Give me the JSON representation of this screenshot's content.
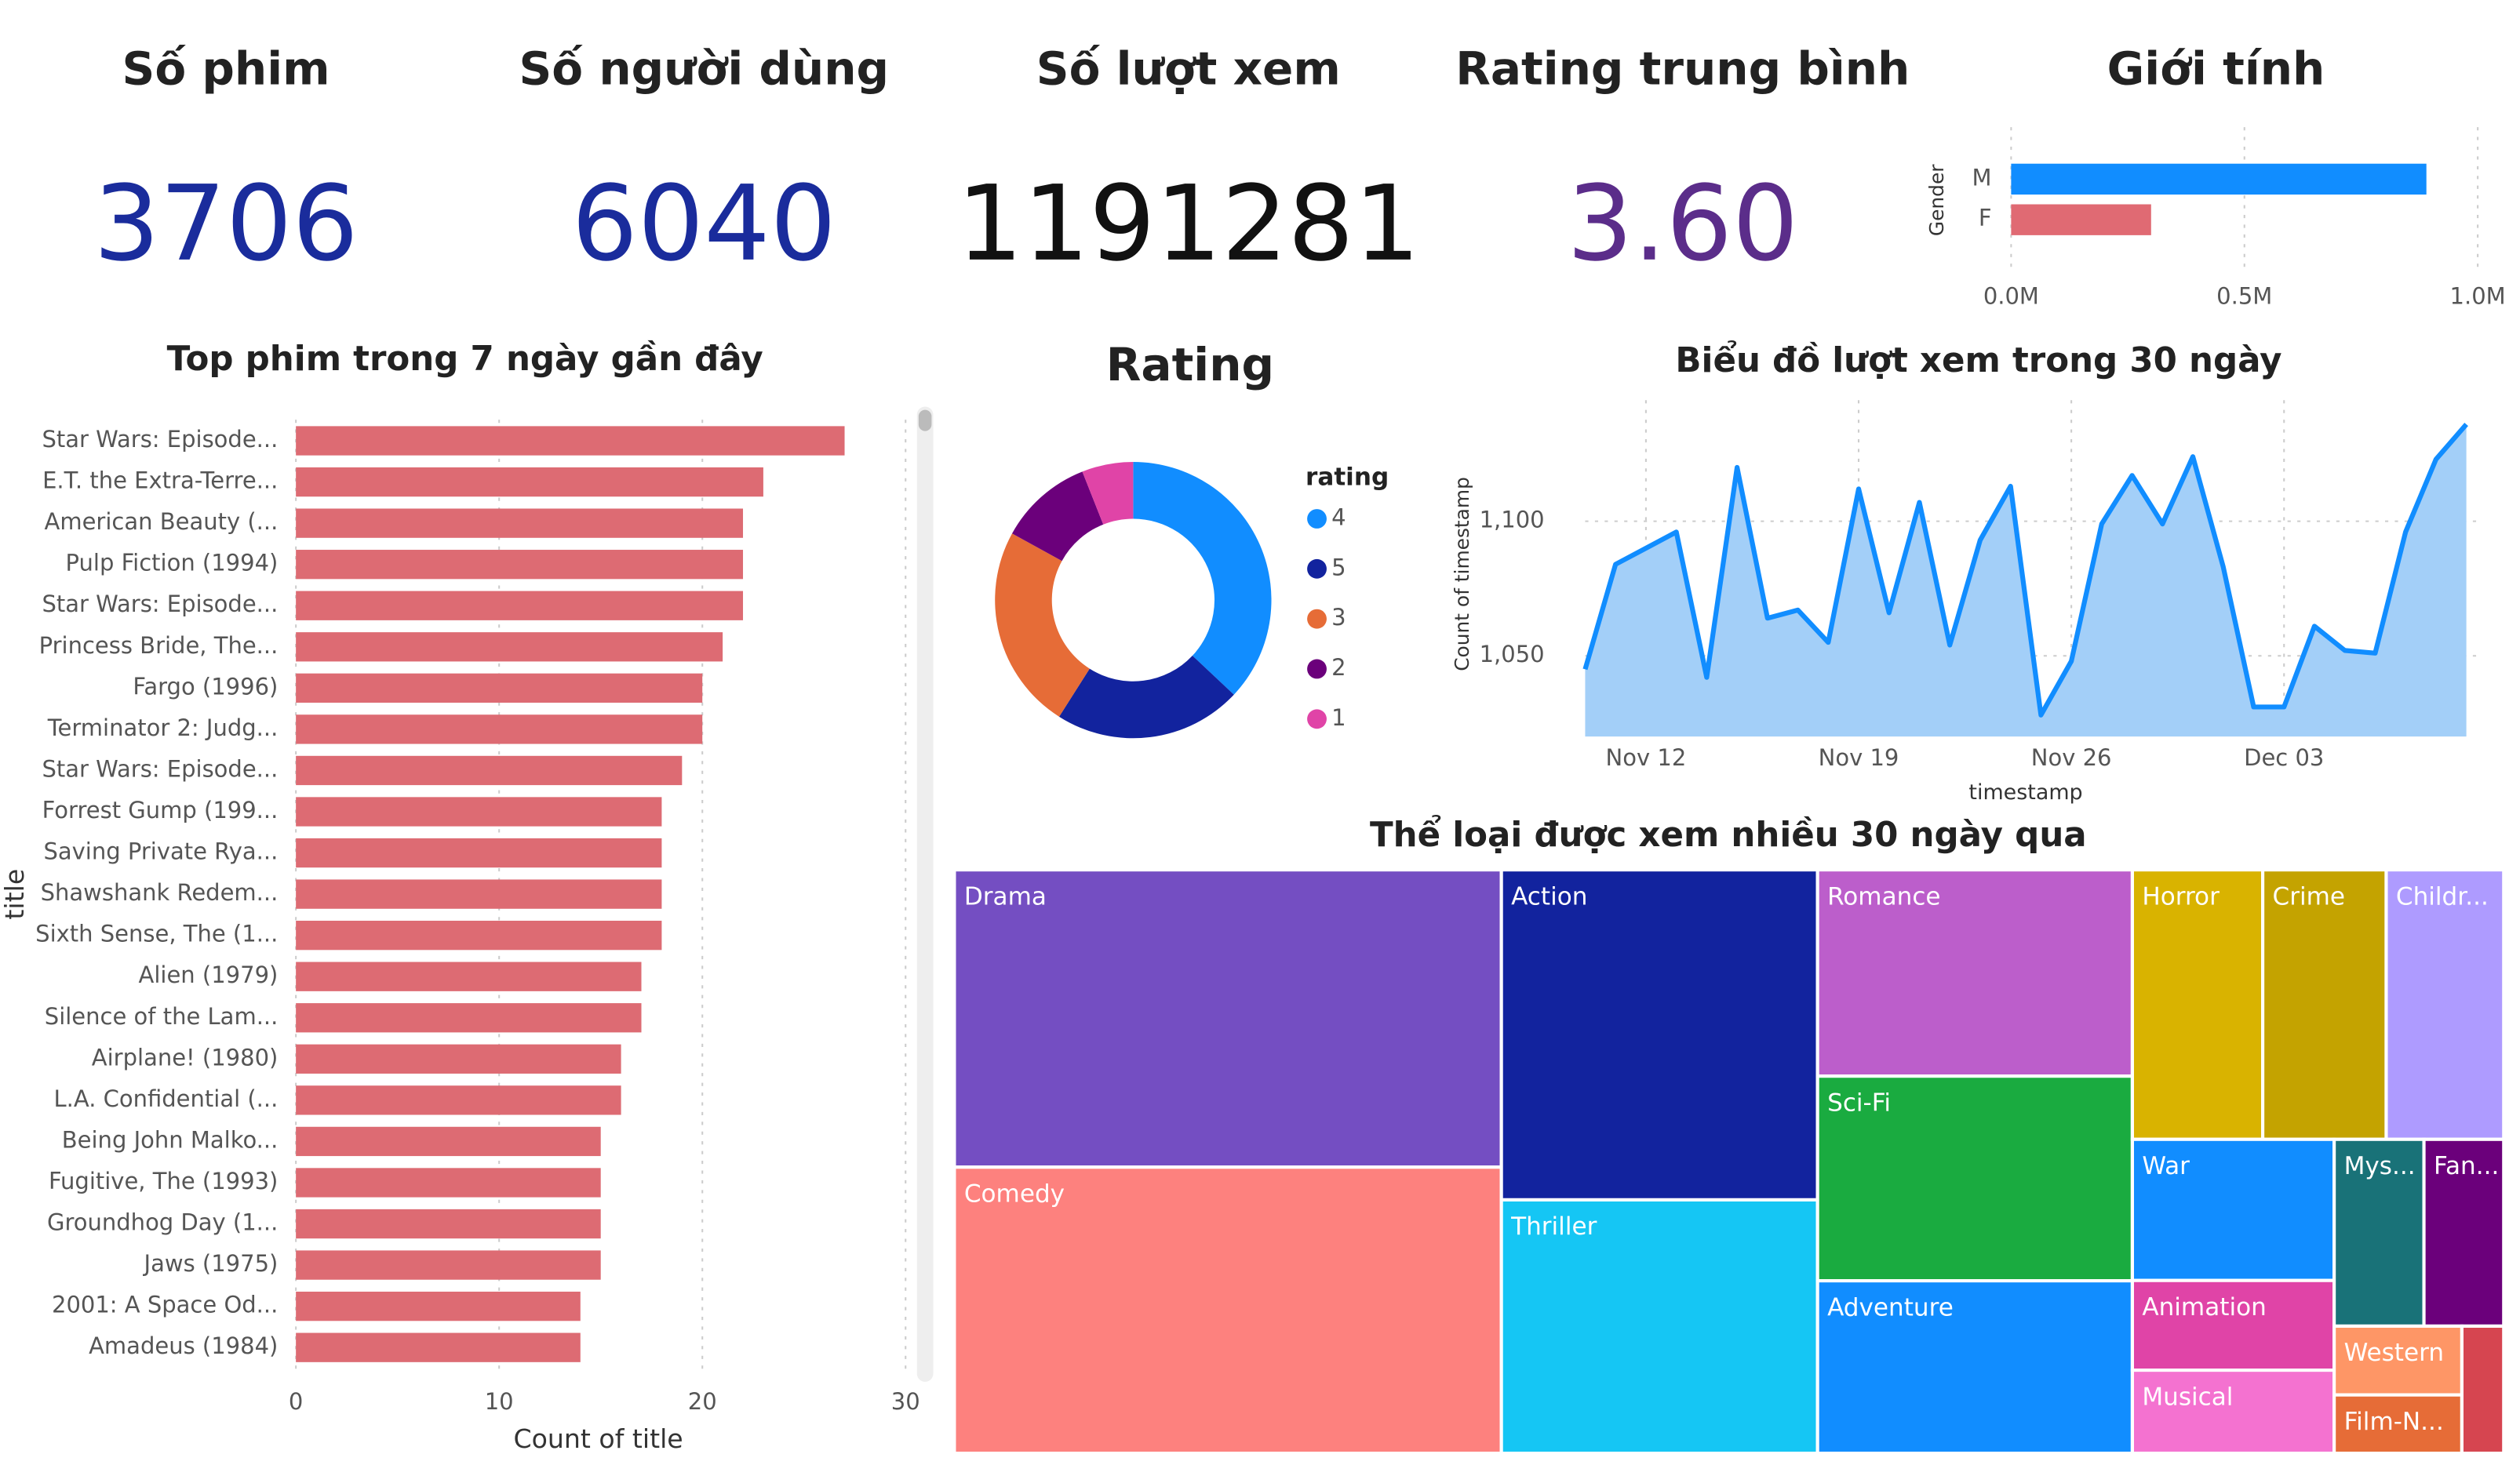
{
  "kpis": [
    {
      "label": "Số phim",
      "value": 3706
    },
    {
      "label": "Số người dùng",
      "value": 6040
    },
    {
      "label": "Số lượt xem",
      "value": 1191281
    },
    {
      "label": "Rating trung bình",
      "value": 3.6,
      "value_label": "3.60"
    }
  ],
  "chart_data": [
    {
      "type": "bar",
      "orientation": "horizontal",
      "title": "Giới tính",
      "y_label": "Gender",
      "categories": [
        "M",
        "F"
      ],
      "values": [
        890000,
        300000
      ],
      "colors": [
        "#118dff",
        "#e06a73"
      ],
      "xlim": [
        0,
        1000000
      ],
      "xticks": [
        {
          "value": 0,
          "label": "0.0M"
        },
        {
          "value": 500000,
          "label": "0.5M"
        },
        {
          "value": 1000000,
          "label": "1.0M"
        }
      ],
      "grid": true
    },
    {
      "type": "bar",
      "orientation": "horizontal",
      "title": "Top phim trong 7 ngày gần đây",
      "x_label": "Count of title",
      "y_label": "title",
      "categories": [
        "Star Wars: Episode...",
        "E.T. the Extra-Terre...",
        "American Beauty (...",
        "Pulp Fiction (1994)",
        "Star Wars: Episode...",
        "Princess Bride, The...",
        "Fargo (1996)",
        "Terminator 2: Judg...",
        "Star Wars: Episode...",
        "Forrest Gump (199...",
        "Saving Private Rya...",
        "Shawshank Redem...",
        "Sixth Sense, The (1...",
        "Alien (1979)",
        "Silence of the Lam...",
        "Airplane! (1980)",
        "L.A. Confidential (...",
        "Being John Malko...",
        "Fugitive, The (1993)",
        "Groundhog Day (1...",
        "Jaws (1975)",
        "2001: A Space Od...",
        "Amadeus (1984)"
      ],
      "values": [
        27,
        23,
        22,
        22,
        22,
        21,
        20,
        20,
        19,
        18,
        18,
        18,
        18,
        17,
        17,
        16,
        16,
        15,
        15,
        15,
        15,
        14,
        14
      ],
      "color": "#dd6b73",
      "xlim": [
        0,
        30
      ],
      "xticks": [
        0,
        10,
        20,
        30
      ],
      "grid": true
    },
    {
      "type": "donut",
      "title": "Rating",
      "legend_title": "rating",
      "categories": [
        "4",
        "5",
        "3",
        "2",
        "1"
      ],
      "values": [
        37,
        22,
        24,
        11,
        6
      ],
      "colors": [
        "#118dff",
        "#12239e",
        "#e66c37",
        "#6b007b",
        "#e044a7"
      ]
    },
    {
      "type": "area",
      "title": "Biểu đồ lượt xem trong 30 ngày",
      "x_label": "timestamp",
      "y_label": "Count of timestamp",
      "x": [
        null,
        null,
        "Nov 12",
        null,
        null,
        null,
        null,
        null,
        null,
        "Nov 19",
        null,
        null,
        null,
        null,
        null,
        null,
        "Nov 26",
        null,
        null,
        null,
        null,
        null,
        null,
        "Dec 03",
        null,
        null,
        null,
        null,
        null,
        null
      ],
      "values": [
        1045,
        1084,
        1090,
        1096,
        1042,
        1120,
        1064,
        1067,
        1055,
        1112,
        1066,
        1107,
        1054,
        1093,
        1113,
        1028,
        1048,
        1099,
        1117,
        1099,
        1124,
        1083,
        1031,
        1031,
        1061,
        1052,
        1051,
        1096,
        1123,
        1136
      ],
      "color": "#118dff",
      "fill_color": "#a3cff8",
      "ylim": [
        1020,
        1145
      ],
      "yticks": [
        {
          "value": 1050,
          "label": "1,050"
        },
        {
          "value": 1100,
          "label": "1,100"
        }
      ],
      "grid": true
    },
    {
      "type": "treemap",
      "title": "Thể loại được xem nhiều 30 ngày qua",
      "categories": [
        "Drama",
        "Comedy",
        "Action",
        "Thriller",
        "Romance",
        "Sci-Fi",
        "Adventure",
        "Horror",
        "Crime",
        "Childr...",
        "War",
        "Animation",
        "Musical",
        "Mys...",
        "Fan...",
        "Western",
        "Film-N...",
        null
      ],
      "values": [
        611,
        588,
        392,
        301,
        244,
        242,
        204,
        132,
        125,
        119,
        107,
        68,
        63,
        63,
        56,
        33,
        28,
        20
      ],
      "colors": [
        "#744ec2",
        "#fd817e",
        "#12239e",
        "#15c6f4",
        "#bc5ecb",
        "#1aab40",
        "#118dff",
        "#d9b300",
        "#c4a300",
        "#ae9bff",
        "#118dff",
        "#e044a7",
        "#f472d0",
        "#197278",
        "#6b007b",
        "#fe9666",
        "#e66c37",
        "#d64550"
      ]
    }
  ]
}
